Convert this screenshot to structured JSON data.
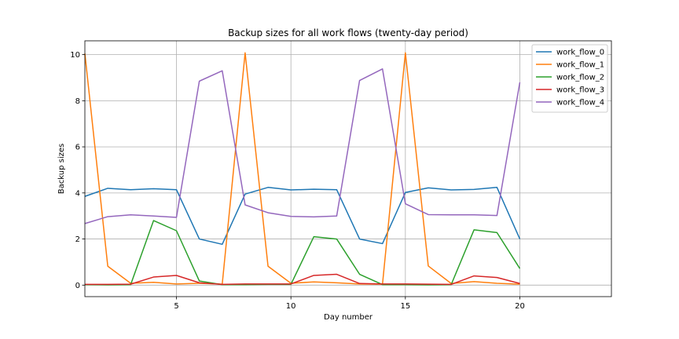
{
  "chart_data": {
    "type": "line",
    "title": "Backup sizes for all work flows (twenty-day period)",
    "xlabel": "Day number",
    "ylabel": "Backup sizes",
    "xlim": [
      1,
      24
    ],
    "ylim": [
      -0.5,
      10.6
    ],
    "x_ticks": [
      5,
      10,
      15,
      20
    ],
    "y_ticks": [
      0,
      2,
      4,
      6,
      8,
      10
    ],
    "grid": true,
    "legend_position": "top-right",
    "x": [
      1,
      2,
      3,
      4,
      5,
      6,
      7,
      8,
      9,
      10,
      11,
      12,
      13,
      14,
      15,
      16,
      17,
      18,
      19,
      20
    ],
    "series": [
      {
        "name": "work_flow_0",
        "color": "#1f77b4",
        "values": [
          3.85,
          4.2,
          4.14,
          4.18,
          4.14,
          2.0,
          1.77,
          3.95,
          4.24,
          4.13,
          4.16,
          4.14,
          2.0,
          1.8,
          4.02,
          4.22,
          4.13,
          4.15,
          4.24,
          2.0
        ]
      },
      {
        "name": "work_flow_1",
        "color": "#ff7f0e",
        "values": [
          10.05,
          0.82,
          0.08,
          0.12,
          0.05,
          0.08,
          0.04,
          10.08,
          0.82,
          0.08,
          0.14,
          0.1,
          0.05,
          0.04,
          10.08,
          0.83,
          0.07,
          0.15,
          0.08,
          0.04
        ]
      },
      {
        "name": "work_flow_2",
        "color": "#2ca02c",
        "values": [
          0.02,
          0.01,
          0.02,
          2.8,
          2.36,
          0.18,
          0.02,
          0.02,
          0.03,
          0.03,
          2.1,
          2.0,
          0.47,
          0.02,
          0.02,
          0.01,
          0.02,
          2.4,
          2.28,
          0.72
        ]
      },
      {
        "name": "work_flow_3",
        "color": "#d62728",
        "values": [
          0.03,
          0.03,
          0.04,
          0.35,
          0.42,
          0.1,
          0.03,
          0.05,
          0.05,
          0.05,
          0.42,
          0.47,
          0.07,
          0.05,
          0.05,
          0.04,
          0.03,
          0.4,
          0.33,
          0.07
        ]
      },
      {
        "name": "work_flow_4",
        "color": "#9467bd",
        "values": [
          2.67,
          2.97,
          3.05,
          3.0,
          2.94,
          8.85,
          9.3,
          3.48,
          3.14,
          2.98,
          2.96,
          3.0,
          8.88,
          9.38,
          3.53,
          3.06,
          3.05,
          3.05,
          3.02,
          8.8
        ]
      }
    ]
  }
}
